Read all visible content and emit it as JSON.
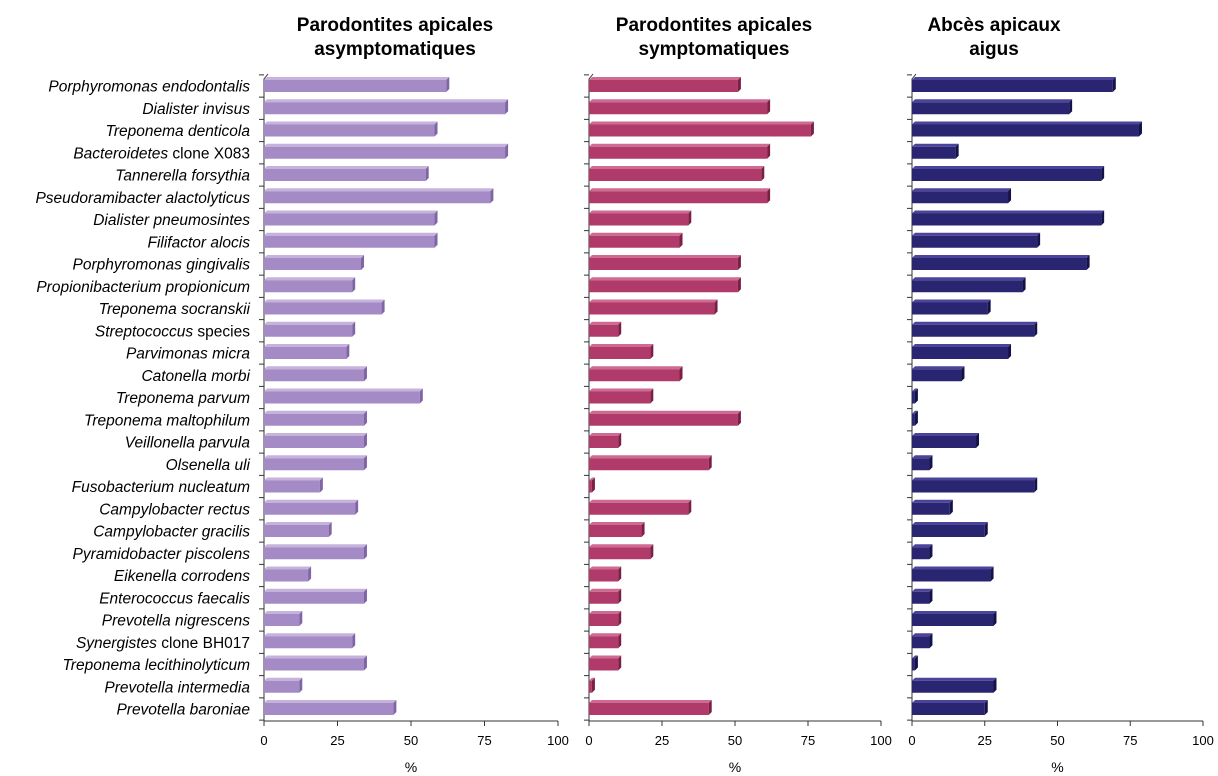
{
  "chart_data": {
    "type": "bar",
    "orientation": "horizontal",
    "grid": false,
    "categories": [
      {
        "italic": "Porphyromonas endodontalis",
        "plain": ""
      },
      {
        "italic": "Dialister invisus",
        "plain": ""
      },
      {
        "italic": "Treponema denticola",
        "plain": ""
      },
      {
        "italic": "Bacteroidetes",
        "plain": " clone X083"
      },
      {
        "italic": "Tannerella forsythia",
        "plain": ""
      },
      {
        "italic": "Pseudoramibacter alactolyticus",
        "plain": ""
      },
      {
        "italic": "Dialister pneumosintes",
        "plain": ""
      },
      {
        "italic": "Filifactor alocis",
        "plain": ""
      },
      {
        "italic": "Porphyromonas gingivalis",
        "plain": ""
      },
      {
        "italic": "Propionibacterium propionicum",
        "plain": ""
      },
      {
        "italic": "Treponema socranskii",
        "plain": ""
      },
      {
        "italic": "Streptococcus",
        "plain": " species"
      },
      {
        "italic": "Parvimonas micra",
        "plain": ""
      },
      {
        "italic": "Catonella morbi",
        "plain": ""
      },
      {
        "italic": "Treponema parvum",
        "plain": ""
      },
      {
        "italic": "Treponema maltophilum",
        "plain": ""
      },
      {
        "italic": "Veillonella parvula",
        "plain": ""
      },
      {
        "italic": "Olsenella uli",
        "plain": ""
      },
      {
        "italic": "Fusobacterium nucleatum",
        "plain": ""
      },
      {
        "italic": "Campylobacter rectus",
        "plain": ""
      },
      {
        "italic": "Campylobacter gracilis",
        "plain": ""
      },
      {
        "italic": "Pyramidobacter piscolens",
        "plain": ""
      },
      {
        "italic": "Eikenella corrodens",
        "plain": ""
      },
      {
        "italic": "Enterococcus faecalis",
        "plain": ""
      },
      {
        "italic": "Prevotella nigrescens",
        "plain": ""
      },
      {
        "italic": "Synergistes",
        "plain": " clone BH017"
      },
      {
        "italic": "Treponema lecithinolyticum",
        "plain": ""
      },
      {
        "italic": "Prevotella intermedia",
        "plain": ""
      },
      {
        "italic": "Prevotella baroniae",
        "plain": ""
      }
    ],
    "xlim": [
      0,
      100
    ],
    "xticks": [
      "0",
      "25",
      "50",
      "75",
      "100"
    ],
    "xlabel": "%",
    "series": [
      {
        "title_lines": [
          "Parodontites apicales",
          "asymptomatiques"
        ],
        "color": "#a58bc6",
        "top_color": "#c5b3dc",
        "end_color": "#7f65a6",
        "values": [
          62,
          82,
          58,
          82,
          55,
          77,
          58,
          58,
          33,
          30,
          40,
          30,
          28,
          34,
          53,
          34,
          34,
          34,
          19,
          31,
          22,
          34,
          15,
          34,
          12,
          30,
          34,
          12,
          44
        ]
      },
      {
        "title_lines": [
          "Parodontites apicales",
          "symptomatiques"
        ],
        "color": "#b03a6a",
        "top_color": "#cf6a93",
        "end_color": "#7c1f47",
        "values": [
          51,
          61,
          76,
          61,
          59,
          61,
          34,
          31,
          51,
          51,
          43,
          10,
          21,
          31,
          21,
          51,
          10,
          41,
          1,
          34,
          18,
          21,
          10,
          10,
          10,
          10,
          10,
          1,
          41
        ]
      },
      {
        "title_lines": [
          "Abcès apicaux",
          "aigus"
        ],
        "color": "#2a2570",
        "top_color": "#4a449a",
        "end_color": "#15124a",
        "values": [
          69,
          54,
          78,
          15,
          65,
          33,
          65,
          43,
          60,
          38,
          26,
          42,
          33,
          17,
          1,
          1,
          22,
          6,
          42,
          13,
          25,
          6,
          27,
          6,
          28,
          6,
          1,
          28,
          25
        ]
      }
    ]
  }
}
